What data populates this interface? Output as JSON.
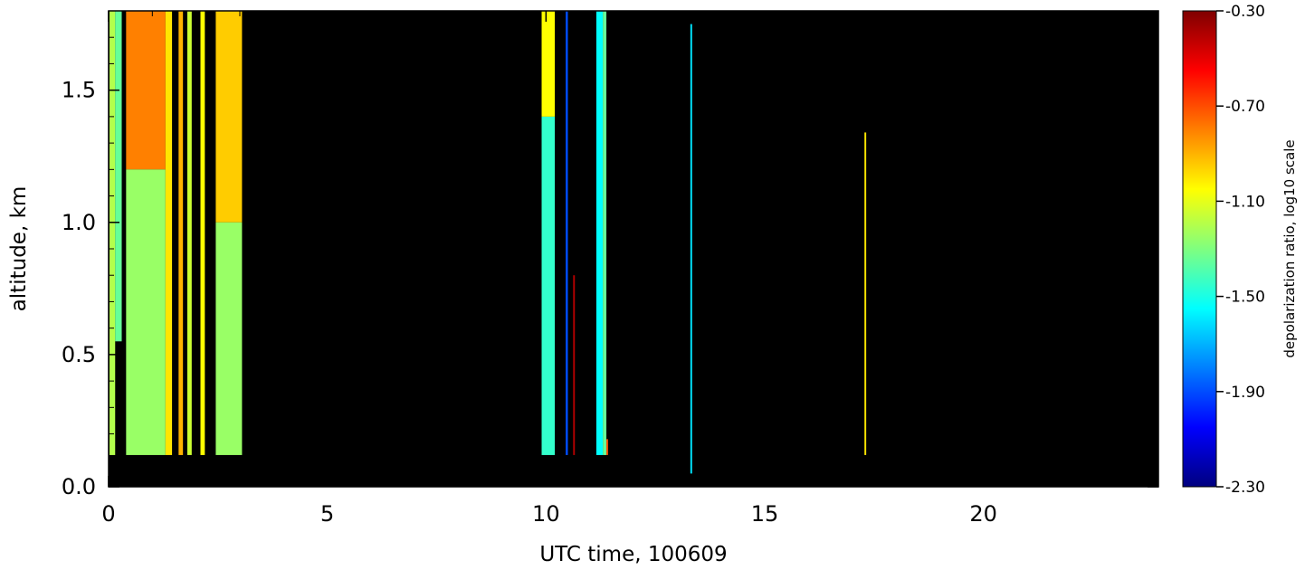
{
  "chart_data": {
    "type": "heatmap",
    "title": "",
    "xlabel": "UTC time, 100609",
    "ylabel": "altitude, km",
    "xlim": [
      0,
      24
    ],
    "ylim": [
      0,
      1.8
    ],
    "x_ticks": [
      0,
      5,
      10,
      15,
      20
    ],
    "x_tick_labels": [
      "0",
      "5",
      "10",
      "15",
      "20"
    ],
    "y_ticks": [
      0.0,
      0.5,
      1.0,
      1.5
    ],
    "y_tick_labels": [
      "0.0",
      "0.5",
      "1.0",
      "1.5"
    ],
    "background": "#000000",
    "colorbar": {
      "title": "depolarization ratio, log10 scale",
      "range": [
        -2.3,
        -0.3
      ],
      "ticks": [
        -0.3,
        -0.7,
        -1.1,
        -1.5,
        -1.9,
        -2.3
      ],
      "tick_labels": [
        "-0.30",
        "-0.70",
        "-1.10",
        "-1.50",
        "-1.90",
        "-2.30"
      ],
      "colormap": "jet"
    },
    "data_columns": [
      {
        "x0": 0.02,
        "x1": 0.15,
        "y0": 0.12,
        "y1": 1.8,
        "value": -1.2
      },
      {
        "x0": 0.15,
        "x1": 0.3,
        "y0": 0.55,
        "y1": 1.8,
        "value": -1.35
      },
      {
        "x0": 0.4,
        "x1": 1.3,
        "y0": 1.2,
        "y1": 1.8,
        "value": -0.8
      },
      {
        "x0": 0.4,
        "x1": 1.3,
        "y0": 0.12,
        "y1": 1.2,
        "value": -1.25
      },
      {
        "x0": 1.3,
        "x1": 1.45,
        "y0": 0.12,
        "y1": 1.8,
        "value": -1.0
      },
      {
        "x0": 1.6,
        "x1": 1.7,
        "y0": 0.12,
        "y1": 1.8,
        "value": -0.9
      },
      {
        "x0": 1.8,
        "x1": 1.9,
        "y0": 0.12,
        "y1": 1.8,
        "value": -1.15
      },
      {
        "x0": 2.1,
        "x1": 2.2,
        "y0": 0.12,
        "y1": 1.8,
        "value": -1.05
      },
      {
        "x0": 2.45,
        "x1": 3.05,
        "y0": 1.0,
        "y1": 1.8,
        "value": -0.95
      },
      {
        "x0": 2.45,
        "x1": 3.05,
        "y0": 0.12,
        "y1": 1.0,
        "value": -1.25
      },
      {
        "x0": 9.9,
        "x1": 10.2,
        "y0": 0.12,
        "y1": 1.4,
        "value": -1.45
      },
      {
        "x0": 9.9,
        "x1": 10.2,
        "y0": 1.4,
        "y1": 1.8,
        "value": -1.05
      },
      {
        "x0": 10.45,
        "x1": 10.5,
        "y0": 0.12,
        "y1": 1.8,
        "value": -1.9
      },
      {
        "x0": 10.62,
        "x1": 10.66,
        "y0": 0.12,
        "y1": 0.8,
        "value": -0.4
      },
      {
        "x0": 11.15,
        "x1": 11.3,
        "y0": 0.12,
        "y1": 1.8,
        "value": -1.55
      },
      {
        "x0": 11.3,
        "x1": 11.38,
        "y0": 0.12,
        "y1": 1.8,
        "value": -1.35
      },
      {
        "x0": 11.38,
        "x1": 11.42,
        "y0": 0.12,
        "y1": 0.18,
        "value": -0.7
      },
      {
        "x0": 13.3,
        "x1": 13.34,
        "y0": 0.05,
        "y1": 1.75,
        "value": -1.6
      },
      {
        "x0": 17.28,
        "x1": 17.32,
        "y0": 0.12,
        "y1": 1.34,
        "value": -1.0
      }
    ]
  }
}
